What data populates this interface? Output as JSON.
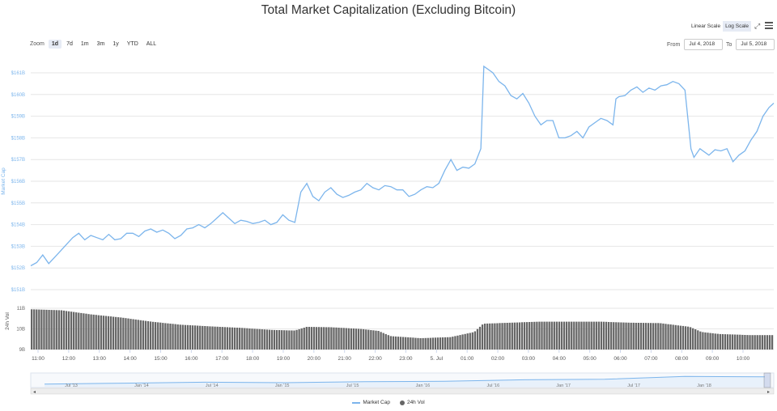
{
  "chart_data": {
    "type": "line",
    "title": "Total Market Capitalization (Excluding Bitcoin)",
    "market_cap": {
      "ylabel": "Market Cap",
      "yticks": [
        "$151B",
        "$152B",
        "$153B",
        "$154B",
        "$155B",
        "$156B",
        "$157B",
        "$158B",
        "$159B",
        "$160B",
        "$161B"
      ],
      "ylim": [
        151,
        161.5
      ],
      "points": [
        [
          0,
          152.1
        ],
        [
          0.1,
          152.25
        ],
        [
          0.2,
          152.6
        ],
        [
          0.3,
          152.2
        ],
        [
          0.4,
          152.5
        ],
        [
          0.5,
          152.8
        ],
        [
          0.6,
          153.1
        ],
        [
          0.7,
          153.4
        ],
        [
          0.8,
          153.6
        ],
        [
          0.9,
          153.3
        ],
        [
          1.0,
          153.5
        ],
        [
          1.1,
          153.4
        ],
        [
          1.2,
          153.3
        ],
        [
          1.3,
          153.55
        ],
        [
          1.4,
          153.3
        ],
        [
          1.5,
          153.35
        ],
        [
          1.6,
          153.6
        ],
        [
          1.7,
          153.6
        ],
        [
          1.8,
          153.45
        ],
        [
          1.9,
          153.7
        ],
        [
          2.0,
          153.8
        ],
        [
          2.1,
          153.65
        ],
        [
          2.2,
          153.75
        ],
        [
          2.3,
          153.6
        ],
        [
          2.4,
          153.35
        ],
        [
          2.5,
          153.5
        ],
        [
          2.6,
          153.8
        ],
        [
          2.7,
          153.85
        ],
        [
          2.8,
          154.0
        ],
        [
          2.9,
          153.85
        ],
        [
          3.0,
          154.05
        ],
        [
          3.1,
          154.3
        ],
        [
          3.2,
          154.55
        ],
        [
          3.3,
          154.3
        ],
        [
          3.4,
          154.05
        ],
        [
          3.5,
          154.2
        ],
        [
          3.6,
          154.15
        ],
        [
          3.7,
          154.05
        ],
        [
          3.8,
          154.1
        ],
        [
          3.9,
          154.2
        ],
        [
          4.0,
          154.0
        ],
        [
          4.1,
          154.1
        ],
        [
          4.2,
          154.45
        ],
        [
          4.3,
          154.2
        ],
        [
          4.4,
          154.1
        ],
        [
          4.5,
          155.5
        ],
        [
          4.6,
          155.9
        ],
        [
          4.7,
          155.3
        ],
        [
          4.8,
          155.1
        ],
        [
          4.9,
          155.5
        ],
        [
          5.0,
          155.7
        ],
        [
          5.1,
          155.4
        ],
        [
          5.2,
          155.25
        ],
        [
          5.3,
          155.35
        ],
        [
          5.4,
          155.5
        ],
        [
          5.5,
          155.6
        ],
        [
          5.6,
          155.9
        ],
        [
          5.7,
          155.7
        ],
        [
          5.8,
          155.6
        ],
        [
          5.9,
          155.8
        ],
        [
          6.0,
          155.75
        ],
        [
          6.1,
          155.6
        ],
        [
          6.2,
          155.6
        ],
        [
          6.3,
          155.3
        ],
        [
          6.4,
          155.4
        ],
        [
          6.5,
          155.6
        ],
        [
          6.6,
          155.75
        ],
        [
          6.7,
          155.7
        ],
        [
          6.8,
          155.9
        ],
        [
          6.9,
          156.5
        ],
        [
          7.0,
          157.0
        ],
        [
          7.1,
          156.5
        ],
        [
          7.2,
          156.65
        ],
        [
          7.3,
          156.6
        ],
        [
          7.4,
          156.8
        ],
        [
          7.5,
          157.5
        ],
        [
          7.55,
          161.3
        ],
        [
          7.7,
          161.0
        ],
        [
          7.8,
          160.6
        ],
        [
          7.9,
          160.4
        ],
        [
          8.0,
          159.95
        ],
        [
          8.1,
          159.8
        ],
        [
          8.2,
          160.05
        ],
        [
          8.3,
          159.6
        ],
        [
          8.4,
          159.0
        ],
        [
          8.5,
          158.6
        ],
        [
          8.6,
          158.8
        ],
        [
          8.7,
          158.8
        ],
        [
          8.8,
          158.0
        ],
        [
          8.9,
          158.0
        ],
        [
          9.0,
          158.1
        ],
        [
          9.1,
          158.3
        ],
        [
          9.2,
          158.0
        ],
        [
          9.3,
          158.5
        ],
        [
          9.4,
          158.7
        ],
        [
          9.5,
          158.9
        ],
        [
          9.6,
          158.8
        ],
        [
          9.7,
          158.6
        ],
        [
          9.75,
          159.8
        ],
        [
          9.8,
          159.9
        ],
        [
          9.9,
          159.95
        ],
        [
          10.0,
          160.2
        ],
        [
          10.1,
          160.35
        ],
        [
          10.2,
          160.1
        ],
        [
          10.3,
          160.3
        ],
        [
          10.4,
          160.2
        ],
        [
          10.5,
          160.4
        ],
        [
          10.6,
          160.45
        ],
        [
          10.7,
          160.6
        ],
        [
          10.8,
          160.5
        ],
        [
          10.9,
          160.2
        ],
        [
          11.0,
          157.5
        ],
        [
          11.05,
          157.1
        ],
        [
          11.15,
          157.5
        ],
        [
          11.3,
          157.2
        ],
        [
          11.4,
          157.45
        ],
        [
          11.5,
          157.4
        ],
        [
          11.6,
          157.5
        ],
        [
          11.7,
          156.9
        ],
        [
          11.8,
          157.2
        ],
        [
          11.9,
          157.4
        ],
        [
          12.0,
          157.9
        ],
        [
          12.1,
          158.3
        ],
        [
          12.2,
          159.0
        ],
        [
          12.3,
          159.4
        ],
        [
          12.38,
          159.6
        ]
      ]
    },
    "volume": {
      "ylabel": "24h Vol",
      "yticks": [
        "9B",
        "10B",
        "11B"
      ],
      "ylim": [
        9,
        11
      ],
      "points": [
        [
          0,
          10.95
        ],
        [
          0.5,
          10.9
        ],
        [
          1.0,
          10.7
        ],
        [
          1.5,
          10.55
        ],
        [
          2.0,
          10.35
        ],
        [
          2.5,
          10.2
        ],
        [
          3.0,
          10.12
        ],
        [
          3.5,
          10.05
        ],
        [
          4.0,
          9.95
        ],
        [
          4.4,
          9.92
        ],
        [
          4.6,
          10.1
        ],
        [
          5.0,
          10.08
        ],
        [
          5.5,
          10.0
        ],
        [
          5.8,
          9.9
        ],
        [
          6.0,
          9.65
        ],
        [
          6.5,
          9.55
        ],
        [
          7.0,
          9.6
        ],
        [
          7.4,
          9.85
        ],
        [
          7.55,
          10.25
        ],
        [
          8.0,
          10.3
        ],
        [
          8.5,
          10.35
        ],
        [
          9.0,
          10.35
        ],
        [
          9.5,
          10.35
        ],
        [
          10.0,
          10.3
        ],
        [
          10.5,
          10.28
        ],
        [
          11.0,
          10.1
        ],
        [
          11.2,
          9.85
        ],
        [
          11.5,
          9.75
        ],
        [
          12.0,
          9.7
        ],
        [
          12.38,
          9.7
        ]
      ]
    },
    "xticks": [
      "11:00",
      "12:00",
      "13:00",
      "14:00",
      "15:00",
      "16:00",
      "17:00",
      "18:00",
      "19:00",
      "20:00",
      "21:00",
      "22:00",
      "23:00",
      "5. Jul",
      "01:00",
      "02:00",
      "03:00",
      "04:00",
      "05:00",
      "06:00",
      "07:00",
      "08:00",
      "09:00",
      "10:00"
    ],
    "navigator": {
      "labels": [
        "Jul '13",
        "Jan '14",
        "Jul '14",
        "Jan '15",
        "Jul '15",
        "Jan '16",
        "Jul '16",
        "Jan '17",
        "Jul '17",
        "Jan '18"
      ],
      "values": [
        0.1,
        0.2,
        0.3,
        0.25,
        0.35,
        0.4,
        0.55,
        0.6,
        0.9,
        0.85
      ]
    },
    "legend": [
      {
        "name": "Market Cap",
        "color": "#7cb5ec"
      },
      {
        "name": "24h Vol",
        "color": "#666666"
      }
    ]
  },
  "controls": {
    "zoom_label": "Zoom",
    "zoom_buttons": [
      "1d",
      "7d",
      "1m",
      "3m",
      "1y",
      "YTD",
      "ALL"
    ],
    "active_zoom": "1d",
    "scale_buttons": [
      "Linear Scale",
      "Log Scale"
    ],
    "active_scale": "Log Scale",
    "from_label": "From",
    "from_value": "Jul 4, 2018",
    "to_label": "To",
    "to_value": "Jul 5, 2018"
  },
  "colors": {
    "line": "#7cb5ec",
    "bar": "#666666",
    "grid": "#e6e6e6",
    "axis_text": "#7cb5ec"
  }
}
